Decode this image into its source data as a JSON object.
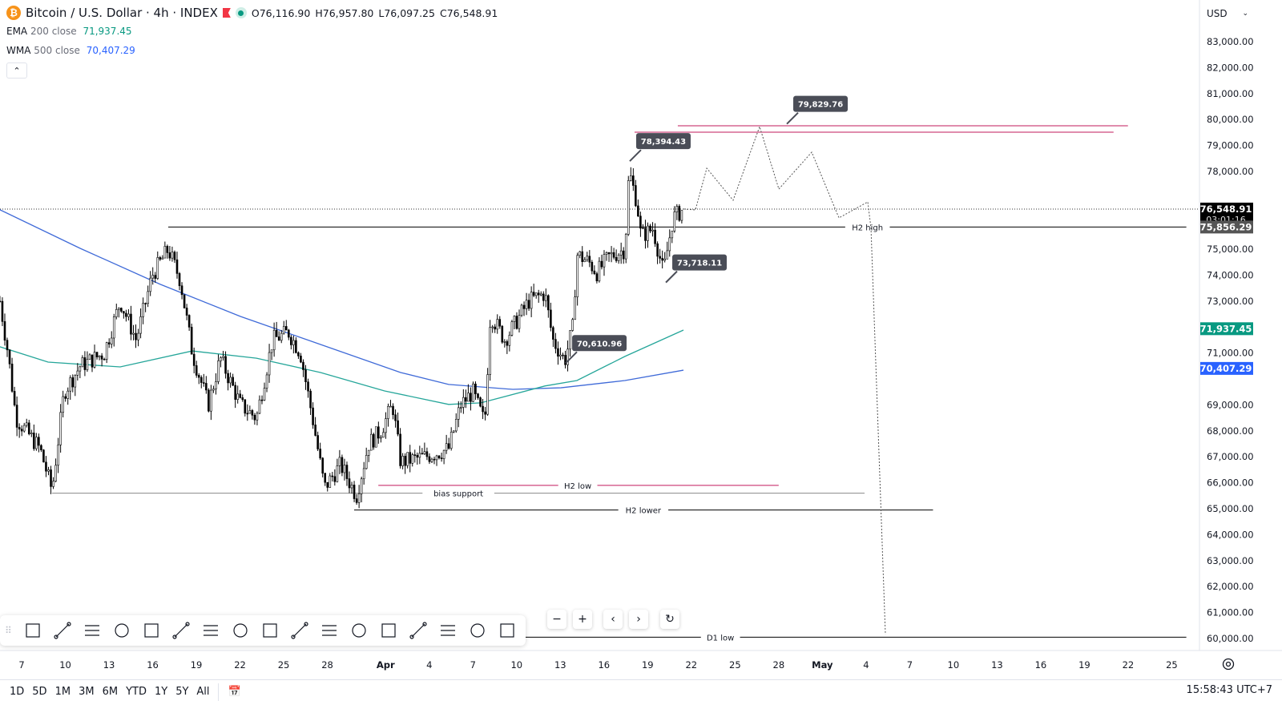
{
  "header": {
    "symbol_title": "Bitcoin / U.S. Dollar · 4h · INDEX",
    "open": "O76,116.90",
    "high": "H76,957.80",
    "low": "L76,097.25",
    "close": "C76,548.91",
    "indicators": [
      {
        "name": "EMA",
        "params": "200 close",
        "value": "71,937.45",
        "color": "#089981"
      },
      {
        "name": "WMA",
        "params": "500 close",
        "value": "70,407.29",
        "color": "#2962ff"
      }
    ],
    "currency": "USD"
  },
  "colors": {
    "up": "#000000",
    "ema": "#26a69a",
    "wma": "#3f6ad8",
    "red_line": "#c2185b",
    "callout": "#4a4d57"
  },
  "chart_data": {
    "type": "candlestick",
    "symbol": "BTCUSD",
    "timeframe": "4h",
    "ylim": [
      59700,
      83500
    ],
    "y_ticks": [
      83000,
      82000,
      81000,
      80000,
      79000,
      78000,
      77000,
      76000,
      75000,
      74000,
      73000,
      72000,
      71000,
      70000,
      69000,
      68000,
      67000,
      66000,
      65000,
      64000,
      63000,
      62000,
      61000,
      60000
    ],
    "x_labels": [
      {
        "d": 0,
        "t": "7"
      },
      {
        "d": 3,
        "t": "10"
      },
      {
        "d": 6,
        "t": "13"
      },
      {
        "d": 9,
        "t": "16"
      },
      {
        "d": 12,
        "t": "19"
      },
      {
        "d": 15,
        "t": "22"
      },
      {
        "d": 18,
        "t": "25"
      },
      {
        "d": 21,
        "t": "28"
      },
      {
        "d": 25,
        "t": "Apr"
      },
      {
        "d": 28,
        "t": "4"
      },
      {
        "d": 31,
        "t": "7"
      },
      {
        "d": 34,
        "t": "10"
      },
      {
        "d": 37,
        "t": "13"
      },
      {
        "d": 40,
        "t": "16"
      },
      {
        "d": 43,
        "t": "19"
      },
      {
        "d": 46,
        "t": "22"
      },
      {
        "d": 49,
        "t": "25"
      },
      {
        "d": 52,
        "t": "28"
      },
      {
        "d": 55,
        "t": "May"
      },
      {
        "d": 58,
        "t": "4"
      },
      {
        "d": 61,
        "t": "7"
      },
      {
        "d": 64,
        "t": "10"
      },
      {
        "d": 67,
        "t": "13"
      },
      {
        "d": 70,
        "t": "16"
      },
      {
        "d": 73,
        "t": "19"
      },
      {
        "d": 76,
        "t": "22"
      },
      {
        "d": 79,
        "t": "25"
      }
    ],
    "price_path": [
      [
        -1.49,
        73000
      ],
      [
        -0.94,
        71000
      ],
      [
        -0.39,
        68500
      ],
      [
        1.27,
        67300
      ],
      [
        2.09,
        65700
      ],
      [
        2.92,
        69500
      ],
      [
        4.02,
        70500
      ],
      [
        5.67,
        71000
      ],
      [
        6.77,
        73000
      ],
      [
        7.87,
        71500
      ],
      [
        8.97,
        74000
      ],
      [
        10.07,
        75000
      ],
      [
        10.9,
        73800
      ],
      [
        11.72,
        71000
      ],
      [
        12.82,
        69000
      ],
      [
        13.65,
        70800
      ],
      [
        15.03,
        69000
      ],
      [
        16.13,
        68500
      ],
      [
        17.23,
        71500
      ],
      [
        18.33,
        71800
      ],
      [
        19.15,
        71000
      ],
      [
        19.98,
        68500
      ],
      [
        20.8,
        65800
      ],
      [
        21.9,
        66700
      ],
      [
        23.0,
        65500
      ],
      [
        23.83,
        67500
      ],
      [
        24.66,
        68000
      ],
      [
        25.48,
        69000
      ],
      [
        26.03,
        66800
      ],
      [
        27.68,
        67000
      ],
      [
        29.33,
        67300
      ],
      [
        30.16,
        69000
      ],
      [
        30.99,
        69500
      ],
      [
        31.81,
        68300
      ],
      [
        32.2,
        72500
      ],
      [
        33.19,
        71500
      ],
      [
        34.84,
        73000
      ],
      [
        35.94,
        73300
      ],
      [
        36.49,
        71500
      ],
      [
        37.31,
        70700
      ],
      [
        37.86,
        72000
      ],
      [
        38.14,
        74800
      ],
      [
        38.97,
        74500
      ],
      [
        39.52,
        74100
      ],
      [
        40.34,
        74700
      ],
      [
        41.44,
        75000
      ],
      [
        41.72,
        78000
      ],
      [
        42.27,
        76800
      ],
      [
        42.54,
        75500
      ],
      [
        43.37,
        75800
      ],
      [
        44.08,
        74100
      ],
      [
        44.74,
        76200
      ],
      [
        45.46,
        76550
      ]
    ],
    "ema200": [
      [
        -1.49,
        71240
      ],
      [
        1.82,
        70650
      ],
      [
        6.77,
        70465
      ],
      [
        11.72,
        71080
      ],
      [
        16.13,
        70800
      ],
      [
        20.53,
        70250
      ],
      [
        24.93,
        69540
      ],
      [
        29.33,
        69020
      ],
      [
        31.54,
        69080
      ],
      [
        35.94,
        69730
      ],
      [
        38.14,
        69940
      ],
      [
        41.44,
        70870
      ],
      [
        45.46,
        71885
      ]
    ],
    "wma500": [
      [
        -1.49,
        76520
      ],
      [
        4.02,
        75035
      ],
      [
        9.52,
        73650
      ],
      [
        15.03,
        72410
      ],
      [
        20.53,
        71330
      ],
      [
        26.03,
        70250
      ],
      [
        29.33,
        69790
      ],
      [
        33.74,
        69600
      ],
      [
        37.04,
        69660
      ],
      [
        41.44,
        69940
      ],
      [
        45.46,
        70340
      ]
    ],
    "projection": [
      [
        45.46,
        76550
      ],
      [
        46.28,
        76516
      ],
      [
        47.06,
        78122
      ],
      [
        48.87,
        76887
      ],
      [
        50.69,
        79727
      ],
      [
        52.01,
        77319
      ],
      [
        54.27,
        78740
      ],
      [
        56.14,
        76208
      ],
      [
        58.12,
        76825
      ],
      [
        58.34,
        75807
      ],
      [
        59.33,
        60154
      ]
    ],
    "hlines": [
      {
        "label": "H2 high",
        "price": 75856.29,
        "from": 10.07,
        "to": 80,
        "color": "#000000",
        "label_at": 58.1
      },
      {
        "label": "bias support",
        "price": 65600,
        "from": 2.09,
        "to": 57.9,
        "color": "#888888",
        "label_at": 30.0
      },
      {
        "label": "H2 low",
        "price": 65900,
        "from": 24.5,
        "to": 52.0,
        "color": "#c2185b",
        "label_at": 38.2
      },
      {
        "label": "H2 lower",
        "price": 64950,
        "from": 22.84,
        "to": 62.6,
        "color": "#000000",
        "label_at": 42.7
      },
      {
        "label": "D1 low",
        "price": 60050,
        "from": 34.6,
        "to": 80,
        "color": "#000000",
        "label_at": 48.0
      },
      {
        "label": "",
        "price": 79760,
        "from": 45.07,
        "to": 75.99,
        "color": "#c2185b"
      },
      {
        "label": "",
        "price": 79510,
        "from": 42.1,
        "to": 75.0,
        "color": "#c2185b"
      }
    ],
    "callouts": [
      {
        "text": "78,394.43",
        "d": 41.77,
        "p": 78394.43
      },
      {
        "text": "79,829.76",
        "d": 52.56,
        "p": 79829.76
      },
      {
        "text": "73,718.11",
        "d": 44.25,
        "p": 73718.11
      },
      {
        "text": "70,610.96",
        "d": 37.37,
        "p": 70610.96
      }
    ],
    "axis_badges": [
      {
        "text": "76,548.91",
        "sub": "03:01:16",
        "p": 76548.91,
        "bg": "#000000"
      },
      {
        "text": "75,856.29",
        "p": 75856.29,
        "bg": "#555555"
      },
      {
        "text": "71,937.45",
        "p": 71937.45,
        "bg": "#089981"
      },
      {
        "text": "70,407.29",
        "p": 70407.29,
        "bg": "#2962ff"
      }
    ],
    "last_price": 76548.91
  },
  "ranges": [
    "1D",
    "5D",
    "1M",
    "3M",
    "6M",
    "YTD",
    "1Y",
    "5Y",
    "All"
  ],
  "clock": "15:58:43 UTC+7",
  "toolbar": [
    "rectangle",
    "callout",
    "fib-retracement",
    "text",
    "path",
    "long-position",
    "long-label",
    "short-label",
    "ellipse-shape",
    "price-label",
    "comment",
    "circle",
    "ray",
    "trend-line",
    "triangle",
    "curve",
    "brush"
  ]
}
